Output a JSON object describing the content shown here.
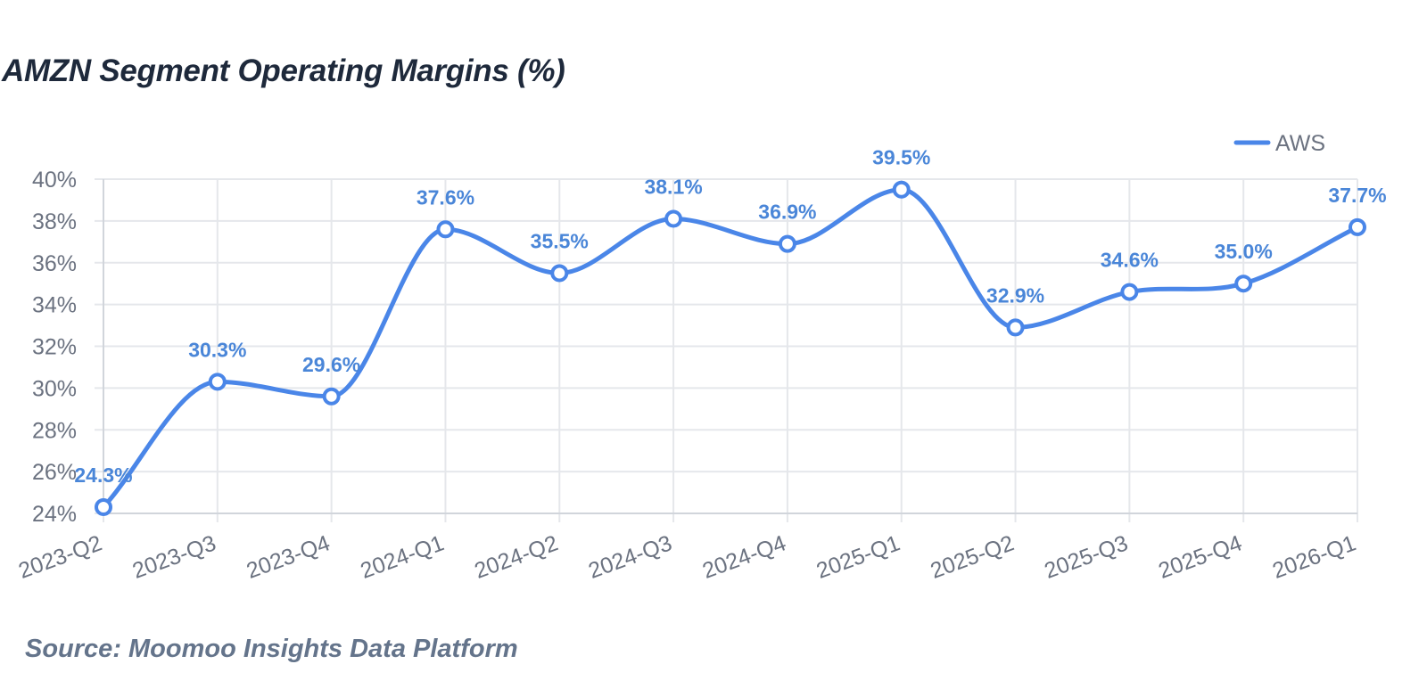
{
  "title": "AMZN Segment Operating Margins (%)",
  "source": "Source: Moomoo Insights Data Platform",
  "colors": {
    "series": "#4a86e8",
    "grid": "#e5e7eb",
    "axis": "#d1d5db"
  },
  "chart_data": {
    "type": "line",
    "title": "AMZN Segment Operating Margins (%)",
    "categories": [
      "2023-Q2",
      "2023-Q3",
      "2023-Q4",
      "2024-Q1",
      "2024-Q2",
      "2024-Q3",
      "2024-Q4",
      "2025-Q1",
      "2025-Q2",
      "2025-Q3",
      "2025-Q4",
      "2026-Q1"
    ],
    "series": [
      {
        "name": "AWS",
        "values": [
          24.3,
          30.3,
          29.6,
          37.6,
          35.5,
          38.1,
          36.9,
          39.5,
          32.9,
          34.6,
          35.0,
          37.7
        ]
      }
    ],
    "data_labels": [
      "24.3%",
      "30.3%",
      "29.6%",
      "37.6%",
      "35.5%",
      "38.1%",
      "36.9%",
      "39.5%",
      "32.9%",
      "34.6%",
      "35.0%",
      "37.7%"
    ],
    "ylim": [
      24,
      40
    ],
    "yticks": [
      "24%",
      "26%",
      "28%",
      "30%",
      "32%",
      "34%",
      "36%",
      "38%",
      "40%"
    ],
    "ytick_values": [
      24,
      26,
      28,
      30,
      32,
      34,
      36,
      38,
      40
    ],
    "xlabel": "",
    "ylabel": "",
    "grid": true,
    "legend": "top-right",
    "smooth": true
  }
}
